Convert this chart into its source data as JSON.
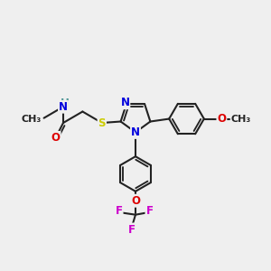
{
  "bg_color": "#efefef",
  "bond_color": "#222222",
  "bond_width": 1.5,
  "atom_colors": {
    "N": "#0000dd",
    "O": "#dd0000",
    "S": "#cccc00",
    "F": "#cc00cc",
    "H": "#3a8a8a",
    "C": "#222222"
  },
  "font_size": 8.5,
  "title": ""
}
